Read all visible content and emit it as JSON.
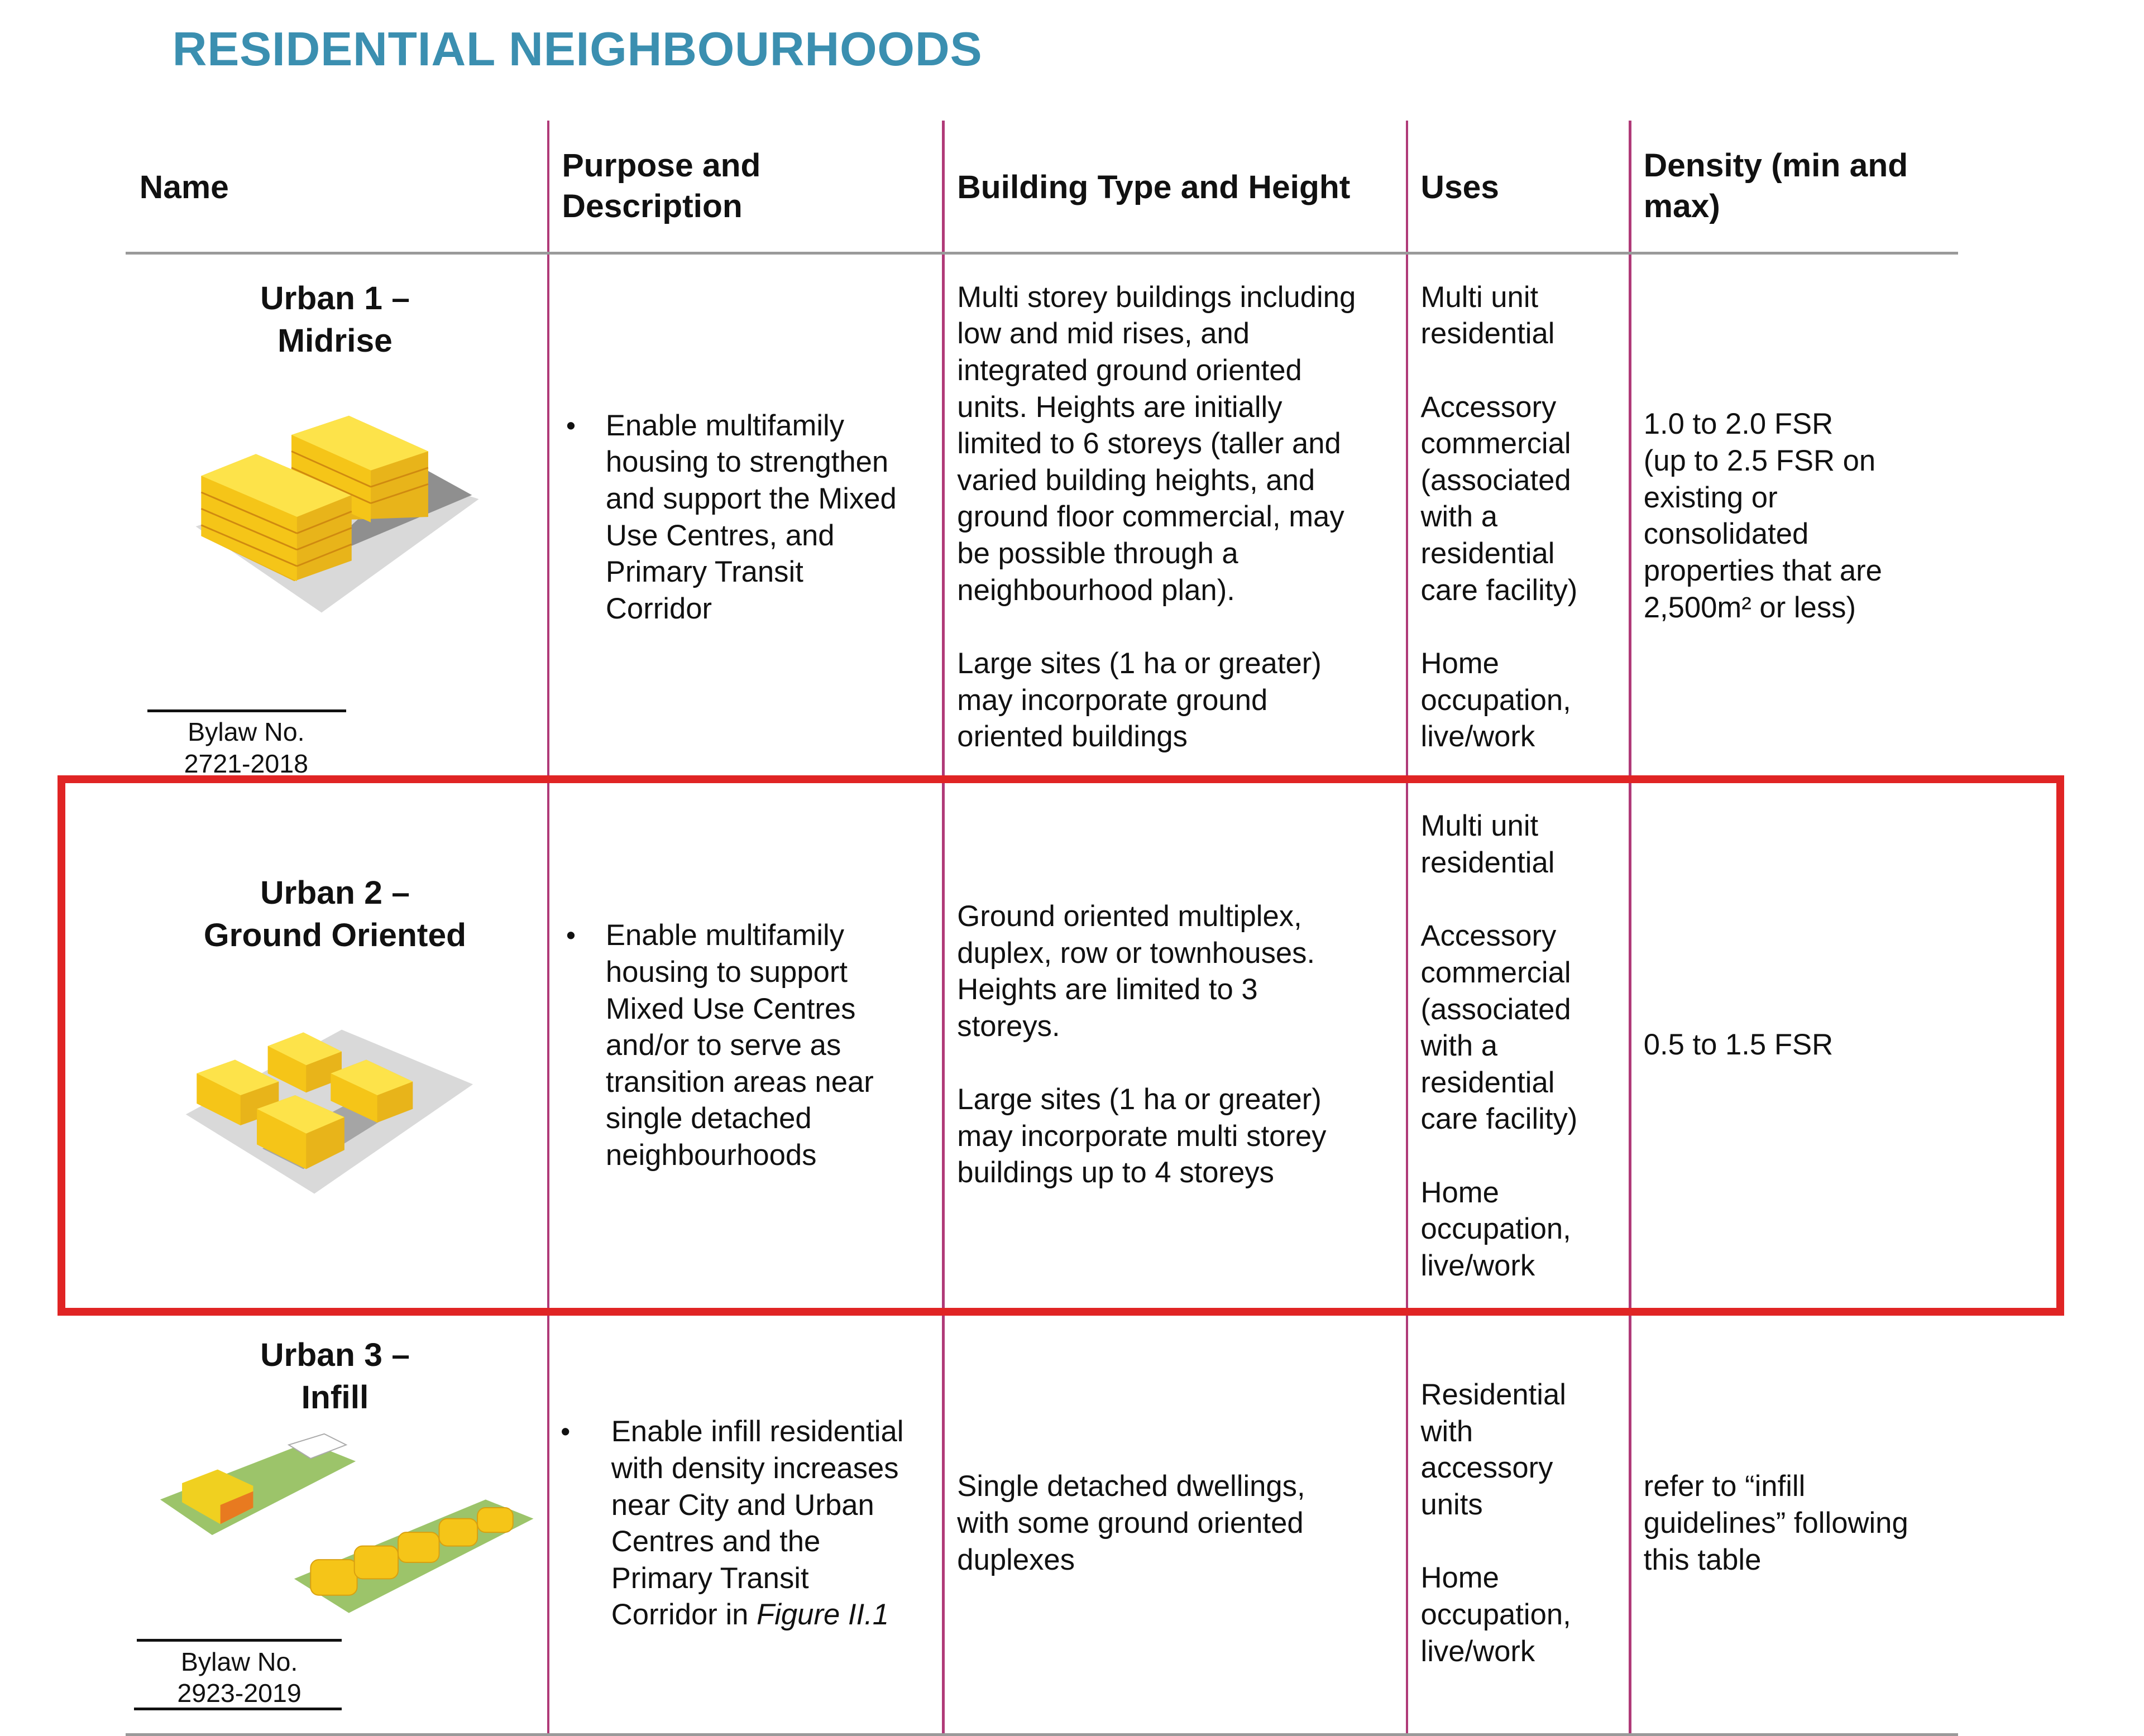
{
  "title": "RESIDENTIAL NEIGHBOURHOODS",
  "headers": {
    "name": "Name",
    "purpose": "Purpose and\nDescription",
    "building": "Building Type and Height",
    "uses": "Uses",
    "density": "Density (min and\nmax)"
  },
  "rows": [
    {
      "name": "Urban 1 –\nMidrise",
      "bylaw": "Bylaw No.\n2721-2018",
      "purpose": "Enable multifamily\nhousing to strengthen\nand support the Mixed\nUse Centres, and\nPrimary Transit\nCorridor",
      "building_p1": "Multi storey buildings including\nlow and mid rises, and\nintegrated ground oriented\nunits. Heights are initially\nlimited to 6 storeys (taller and\nvaried building heights, and\nground floor commercial, may\nbe possible through a\nneighbourhood plan).",
      "building_p2": "Large sites (1 ha or greater)\nmay incorporate ground\noriented buildings",
      "uses": "Multi unit\nresidential\n\nAccessory\ncommercial\n(associated\nwith a\nresidential\ncare facility)\n\nHome\noccupation,\nlive/work",
      "density": "1.0 to 2.0 FSR\n(up to 2.5 FSR on\nexisting or\nconsolidated\nproperties that are\n2,500m² or less)"
    },
    {
      "name": "Urban 2 –\nGround Oriented",
      "purpose": "Enable multifamily\nhousing to support\nMixed Use Centres\nand/or to serve as\ntransition areas near\nsingle detached\nneighbourhoods",
      "building_p1": "Ground oriented multiplex,\nduplex, row or townhouses.\nHeights are limited to 3\nstoreys.",
      "building_p2": "Large sites (1 ha or greater)\nmay incorporate multi storey\nbuildings up to 4 storeys",
      "uses": "Multi unit\nresidential\n\nAccessory\ncommercial\n(associated\nwith a\nresidential\ncare facility)\n\nHome\noccupation,\nlive/work",
      "density": "0.5 to 1.5 FSR",
      "highlight_color": "#e02424"
    },
    {
      "name": "Urban 3 –\nInfill",
      "bylaw": "Bylaw No.\n2923-2019",
      "purpose": "Enable infill residential\nwith density increases\nnear City and Urban\nCentres and the\nPrimary Transit\nCorridor in ",
      "purpose_italic": "Figure II.1",
      "building_p1": "Single detached dwellings,\nwith some ground oriented\nduplexes",
      "uses": "Residential\nwith\naccessory\nunits\n\nHome\noccupation,\nlive/work",
      "density": "refer to “infill\nguidelines” following\nthis table"
    }
  ],
  "colors": {
    "title": "#3b8fb0",
    "column_rule": "#b03a78",
    "highlight": "#e02424",
    "building": "#f5c518"
  }
}
